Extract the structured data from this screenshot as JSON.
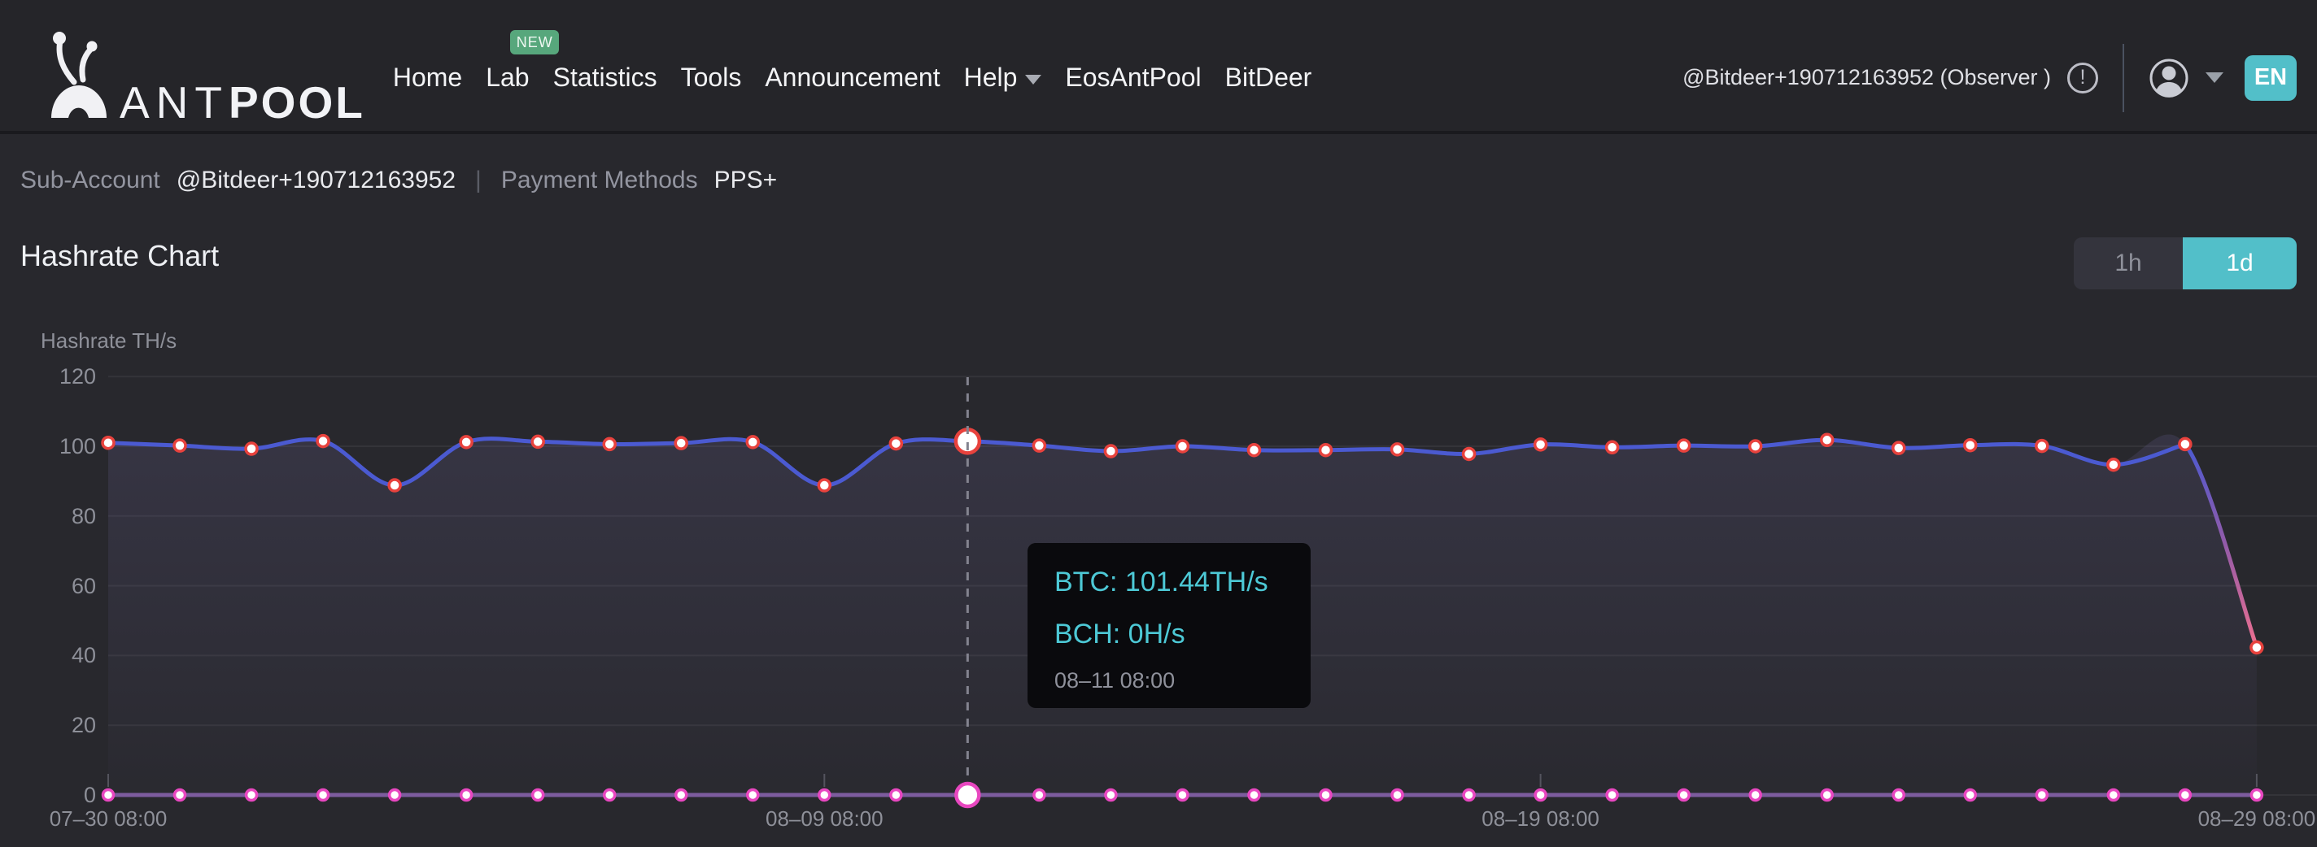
{
  "colors": {
    "accent_teal": "#52bfc9",
    "badge_new": "#57a77c",
    "tooltip_text": "#4dc9d6",
    "btc_line": "#4b5ad1",
    "btc_drop_mid": "#945ba8",
    "btc_drop_end": "#ee7090",
    "btc_dot_ring": "#e8423d",
    "bch_line": "#7d5c9e",
    "bch_dot_ring": "#e847c0"
  },
  "header": {
    "brand": {
      "ant": "ANT",
      "pool": "POOL"
    },
    "nav": [
      {
        "label": "Home"
      },
      {
        "label": "Lab",
        "badge": "NEW"
      },
      {
        "label": "Statistics"
      },
      {
        "label": "Tools"
      },
      {
        "label": "Announcement"
      },
      {
        "label": "Help"
      },
      {
        "label": "EosAntPool"
      },
      {
        "label": "BitDeer"
      }
    ],
    "account": {
      "observer_text": "@Bitdeer+190712163952 (Observer )",
      "alert_glyph": "!",
      "language": "EN"
    }
  },
  "subheader": {
    "sub_account_label": "Sub-Account",
    "sub_account_value": "@Bitdeer+190712163952",
    "pipe": "|",
    "payment_label": "Payment Methods",
    "payment_value": "PPS+"
  },
  "section": {
    "title": "Hashrate Chart",
    "range_1h": "1h",
    "range_1d": "1d"
  },
  "chart_data": {
    "type": "line",
    "title": "Hashrate Chart",
    "ylabel": "Hashrate TH/s",
    "ylim": [
      0,
      120
    ],
    "yticks": [
      0,
      20,
      40,
      60,
      80,
      100,
      120
    ],
    "grid": true,
    "x_dates": [
      "07-30",
      "07-31",
      "08-01",
      "08-02",
      "08-03",
      "08-04",
      "08-05",
      "08-06",
      "08-07",
      "08-08",
      "08-09",
      "08-10",
      "08-11",
      "08-12",
      "08-13",
      "08-14",
      "08-15",
      "08-16",
      "08-17",
      "08-18",
      "08-19",
      "08-20",
      "08-21",
      "08-22",
      "08-23",
      "08-24",
      "08-25",
      "08-26",
      "08-27",
      "08-28",
      "08-29"
    ],
    "x_labels": [
      "07–30 08:00",
      "08–09 08:00",
      "08–19 08:00",
      "08–29 08:00"
    ],
    "x_label_indices": [
      0,
      10,
      20,
      30
    ],
    "series": [
      {
        "name": "BTC",
        "unit": "TH/s",
        "values": [
          101.0,
          100.2,
          99.3,
          101.5,
          88.8,
          101.2,
          101.3,
          100.6,
          100.9,
          101.2,
          88.8,
          100.8,
          101.44,
          100.2,
          98.6,
          100.0,
          98.9,
          98.9,
          99.1,
          97.8,
          100.5,
          99.7,
          100.2,
          100.0,
          101.8,
          99.5,
          100.3,
          100.1,
          94.7,
          100.6,
          42.3
        ]
      },
      {
        "name": "BCH",
        "unit": "H/s",
        "values": [
          0,
          0,
          0,
          0,
          0,
          0,
          0,
          0,
          0,
          0,
          0,
          0,
          0,
          0,
          0,
          0,
          0,
          0,
          0,
          0,
          0,
          0,
          0,
          0,
          0,
          0,
          0,
          0,
          0,
          0,
          0
        ]
      }
    ],
    "highlight_index": 12,
    "tooltip": {
      "btc": "BTC: 101.44TH/s",
      "bch": "BCH: 0H/s",
      "date": "08–11 08:00"
    }
  }
}
